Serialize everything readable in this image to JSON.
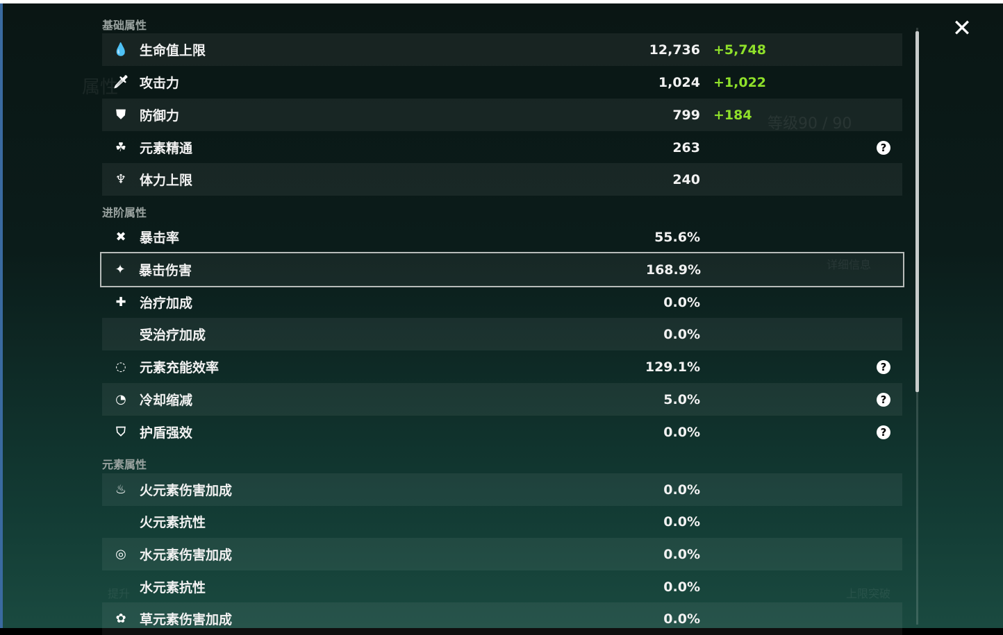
{
  "close_icon": "close-icon",
  "background_ghost": {
    "title": "属性",
    "level": "等级90 / 90",
    "details_button": "详细信息",
    "breakthrough_button": "上限突破",
    "upgrade_button": "提升"
  },
  "sections": [
    {
      "title": "基础属性",
      "rows": [
        {
          "icon": "hp-drop-icon",
          "glyph": "💧",
          "label": "生命值上限",
          "value": "12,736",
          "bonus": "+5,748"
        },
        {
          "icon": "sword-icon",
          "glyph": "🗡",
          "label": "攻击力",
          "value": "1,024",
          "bonus": "+1,022"
        },
        {
          "icon": "shield-icon",
          "glyph": "⛊",
          "label": "防御力",
          "value": "799",
          "bonus": "+184"
        },
        {
          "icon": "elemental-mastery-icon",
          "glyph": "☘",
          "label": "元素精通",
          "value": "263",
          "help": true
        },
        {
          "icon": "stamina-icon",
          "glyph": "♆",
          "label": "体力上限",
          "value": "240"
        }
      ]
    },
    {
      "title": "进阶属性",
      "rows": [
        {
          "icon": "crit-rate-icon",
          "glyph": "✖",
          "label": "暴击率",
          "value": "55.6%"
        },
        {
          "icon": "crit-dmg-icon",
          "glyph": "✦",
          "label": "暴击伤害",
          "value": "168.9%",
          "selected": true
        },
        {
          "icon": "healing-bonus-icon",
          "glyph": "✚",
          "label": "治疗加成",
          "value": "0.0%"
        },
        {
          "icon": "",
          "glyph": "",
          "label": "受治疗加成",
          "value": "0.0%"
        },
        {
          "icon": "energy-recharge-icon",
          "glyph": "◌",
          "label": "元素充能效率",
          "value": "129.1%",
          "help": true
        },
        {
          "icon": "cooldown-icon",
          "glyph": "◔",
          "label": "冷却缩减",
          "value": "5.0%",
          "help": true
        },
        {
          "icon": "shield-strength-icon",
          "glyph": "⛉",
          "label": "护盾强效",
          "value": "0.0%",
          "help": true
        }
      ]
    },
    {
      "title": "元素属性",
      "rows": [
        {
          "icon": "pyro-icon",
          "glyph": "♨",
          "label": "火元素伤害加成",
          "value": "0.0%"
        },
        {
          "icon": "",
          "glyph": "",
          "label": "火元素抗性",
          "value": "0.0%"
        },
        {
          "icon": "hydro-icon",
          "glyph": "◎",
          "label": "水元素伤害加成",
          "value": "0.0%"
        },
        {
          "icon": "",
          "glyph": "",
          "label": "水元素抗性",
          "value": "0.0%"
        },
        {
          "icon": "dendro-icon",
          "glyph": "✿",
          "label": "草元素伤害加成",
          "value": "0.0%"
        }
      ]
    }
  ]
}
